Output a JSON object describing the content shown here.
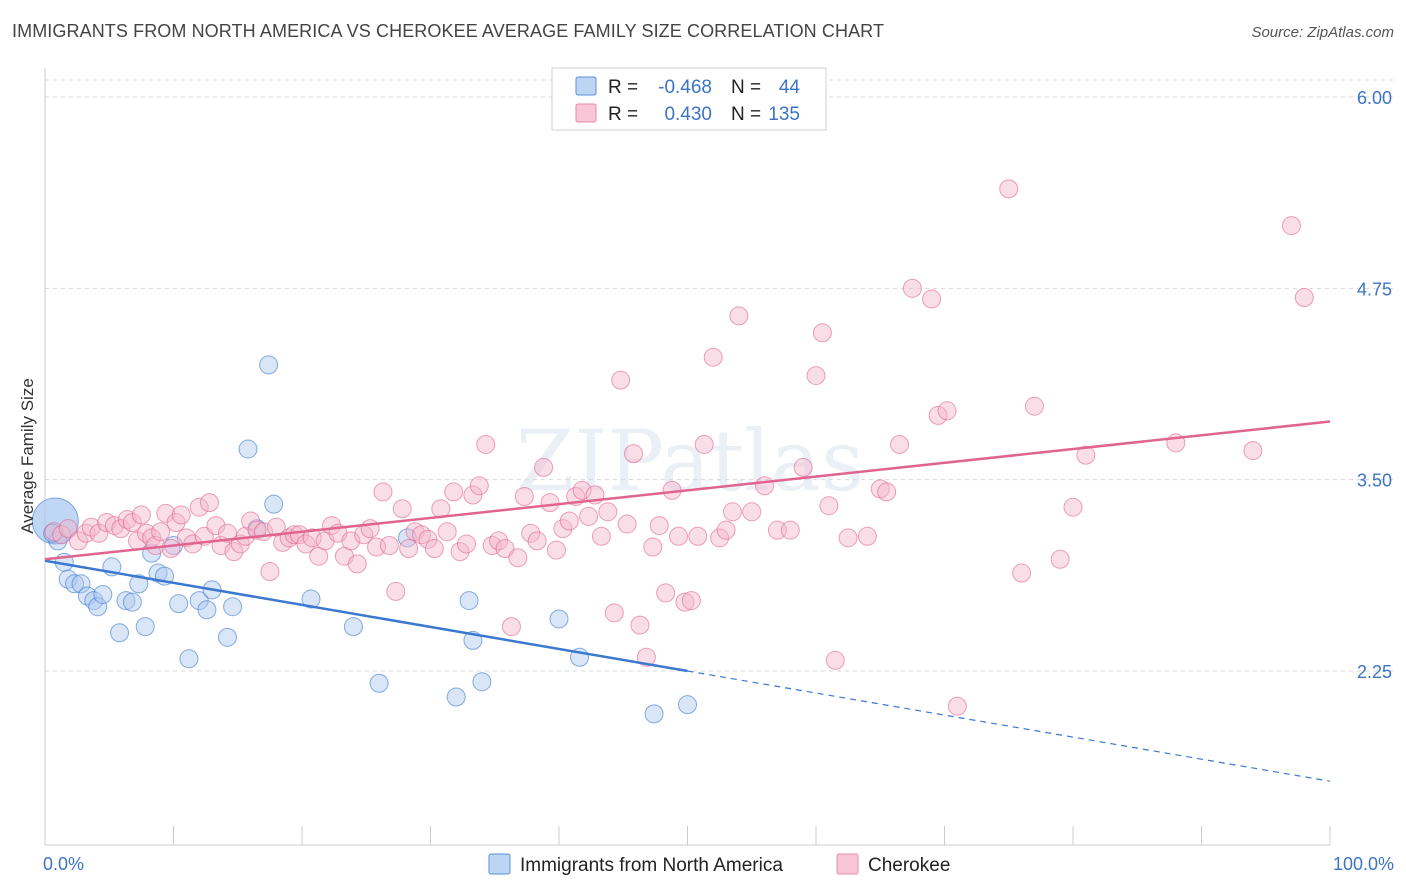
{
  "title": "IMMIGRANTS FROM NORTH AMERICA VS CHEROKEE AVERAGE FAMILY SIZE CORRELATION CHART",
  "source": "Source: ZipAtlas.com",
  "watermark": "ZIPatlas",
  "colors": {
    "blue": "#3b78d0",
    "blue_fill": "#aac8f0",
    "pink": "#e0648f",
    "pink_fill": "#f5b5ca",
    "axis_text": "#3b74c6",
    "grid": "#d8d8d8"
  },
  "legend": {
    "rows": [
      {
        "r_label": "R =",
        "r_value": "-0.468",
        "n_label": "N =",
        "n_value": "44"
      },
      {
        "r_label": "R =",
        "r_value": "0.430",
        "n_label": "N =",
        "n_value": "135"
      }
    ]
  },
  "chart_data": {
    "type": "scatter",
    "ylabel": "Average Family Size",
    "xlabel": "",
    "xlim": [
      0,
      100
    ],
    "ylim": [
      1.25,
      6.1
    ],
    "yticks": [
      2.25,
      3.5,
      4.75,
      6.0
    ],
    "ytick_labels": [
      "2.25",
      "3.50",
      "4.75",
      "6.00"
    ],
    "xtick_labels": [
      "0.0%",
      "100.0%"
    ],
    "grid": "horizontal dashed",
    "legend_position": "top-center",
    "series": [
      {
        "name": "Immigrants from North America",
        "color": "#3b78d0",
        "trend": {
          "x0": 0,
          "y0": 2.97,
          "x1": 50,
          "y1": 2.25,
          "dashed_to_x": 100,
          "dashed_to_y": 1.53
        },
        "points": [
          [
            0.8,
            3.23
          ],
          [
            1.0,
            3.1
          ],
          [
            1.5,
            2.96
          ],
          [
            1.8,
            2.85
          ],
          [
            2.3,
            2.82
          ],
          [
            2.8,
            2.82
          ],
          [
            3.3,
            2.74
          ],
          [
            3.8,
            2.71
          ],
          [
            4.1,
            2.67
          ],
          [
            4.5,
            2.75
          ],
          [
            5.2,
            2.93
          ],
          [
            5.8,
            2.5
          ],
          [
            6.3,
            2.71
          ],
          [
            6.8,
            2.7
          ],
          [
            7.3,
            2.82
          ],
          [
            7.8,
            2.54
          ],
          [
            8.3,
            3.02
          ],
          [
            8.8,
            2.89
          ],
          [
            9.3,
            2.87
          ],
          [
            10.0,
            3.07
          ],
          [
            10.4,
            2.69
          ],
          [
            11.2,
            2.33
          ],
          [
            12.0,
            2.71
          ],
          [
            12.6,
            2.65
          ],
          [
            13.0,
            2.78
          ],
          [
            14.2,
            2.47
          ],
          [
            14.6,
            2.67
          ],
          [
            15.8,
            3.7
          ],
          [
            16.5,
            3.18
          ],
          [
            17.4,
            4.25
          ],
          [
            17.8,
            3.34
          ],
          [
            20.7,
            2.72
          ],
          [
            24.0,
            2.54
          ],
          [
            26.0,
            2.17
          ],
          [
            28.2,
            3.12
          ],
          [
            32.0,
            2.08
          ],
          [
            33.0,
            2.71
          ],
          [
            33.3,
            2.45
          ],
          [
            34.0,
            2.18
          ],
          [
            40.0,
            2.59
          ],
          [
            41.6,
            2.34
          ],
          [
            47.4,
            1.97
          ],
          [
            50.0,
            2.03
          ],
          [
            0.6,
            3.15
          ]
        ]
      },
      {
        "name": "Cherokee",
        "color": "#e0648f",
        "trend": {
          "x0": 0,
          "y0": 2.98,
          "x1": 100,
          "y1": 3.88
        },
        "points": [
          [
            0.7,
            3.16
          ],
          [
            1.3,
            3.14
          ],
          [
            1.8,
            3.18
          ],
          [
            2.6,
            3.1
          ],
          [
            3.2,
            3.15
          ],
          [
            3.6,
            3.19
          ],
          [
            4.2,
            3.15
          ],
          [
            4.8,
            3.22
          ],
          [
            5.4,
            3.2
          ],
          [
            5.9,
            3.18
          ],
          [
            6.4,
            3.24
          ],
          [
            6.8,
            3.22
          ],
          [
            7.2,
            3.1
          ],
          [
            7.5,
            3.27
          ],
          [
            7.9,
            3.15
          ],
          [
            8.3,
            3.12
          ],
          [
            8.6,
            3.07
          ],
          [
            9.0,
            3.16
          ],
          [
            9.4,
            3.28
          ],
          [
            9.8,
            3.05
          ],
          [
            10.2,
            3.22
          ],
          [
            10.6,
            3.27
          ],
          [
            11.0,
            3.12
          ],
          [
            11.5,
            3.08
          ],
          [
            12.0,
            3.32
          ],
          [
            12.4,
            3.13
          ],
          [
            12.8,
            3.35
          ],
          [
            13.3,
            3.2
          ],
          [
            13.7,
            3.07
          ],
          [
            14.2,
            3.15
          ],
          [
            14.7,
            3.03
          ],
          [
            15.2,
            3.08
          ],
          [
            15.6,
            3.13
          ],
          [
            16.0,
            3.23
          ],
          [
            16.5,
            3.17
          ],
          [
            17.0,
            3.16
          ],
          [
            17.5,
            2.9
          ],
          [
            18.0,
            3.19
          ],
          [
            18.5,
            3.09
          ],
          [
            19.0,
            3.12
          ],
          [
            19.4,
            3.14
          ],
          [
            19.8,
            3.14
          ],
          [
            20.3,
            3.08
          ],
          [
            20.8,
            3.12
          ],
          [
            21.3,
            3.0
          ],
          [
            21.8,
            3.1
          ],
          [
            22.3,
            3.2
          ],
          [
            22.8,
            3.15
          ],
          [
            23.3,
            3.0
          ],
          [
            23.8,
            3.1
          ],
          [
            24.3,
            2.95
          ],
          [
            24.8,
            3.14
          ],
          [
            25.3,
            3.18
          ],
          [
            25.8,
            3.06
          ],
          [
            26.3,
            3.42
          ],
          [
            26.8,
            3.07
          ],
          [
            27.3,
            2.77
          ],
          [
            27.8,
            3.31
          ],
          [
            28.3,
            3.05
          ],
          [
            28.8,
            3.16
          ],
          [
            29.3,
            3.14
          ],
          [
            29.8,
            3.11
          ],
          [
            30.3,
            3.05
          ],
          [
            30.8,
            3.31
          ],
          [
            31.3,
            3.16
          ],
          [
            31.8,
            3.42
          ],
          [
            32.3,
            3.03
          ],
          [
            32.8,
            3.08
          ],
          [
            33.3,
            3.4
          ],
          [
            33.8,
            3.46
          ],
          [
            34.3,
            3.73
          ],
          [
            34.8,
            3.07
          ],
          [
            35.3,
            3.1
          ],
          [
            35.8,
            3.05
          ],
          [
            36.3,
            2.54
          ],
          [
            36.8,
            2.99
          ],
          [
            37.3,
            3.39
          ],
          [
            37.8,
            3.15
          ],
          [
            38.3,
            3.1
          ],
          [
            38.8,
            3.58
          ],
          [
            39.3,
            3.35
          ],
          [
            39.8,
            3.04
          ],
          [
            40.3,
            3.18
          ],
          [
            40.8,
            3.23
          ],
          [
            41.3,
            3.39
          ],
          [
            41.8,
            3.43
          ],
          [
            42.3,
            3.26
          ],
          [
            42.8,
            3.4
          ],
          [
            43.3,
            3.13
          ],
          [
            43.8,
            3.29
          ],
          [
            44.3,
            2.63
          ],
          [
            44.8,
            4.15
          ],
          [
            45.3,
            3.21
          ],
          [
            45.8,
            3.67
          ],
          [
            46.3,
            2.55
          ],
          [
            46.8,
            2.34
          ],
          [
            47.3,
            3.06
          ],
          [
            47.8,
            3.2
          ],
          [
            48.3,
            2.76
          ],
          [
            48.8,
            3.43
          ],
          [
            49.3,
            3.13
          ],
          [
            49.8,
            2.7
          ],
          [
            50.3,
            2.71
          ],
          [
            50.8,
            3.13
          ],
          [
            51.3,
            3.73
          ],
          [
            52.0,
            4.3
          ],
          [
            52.5,
            3.12
          ],
          [
            53.0,
            3.17
          ],
          [
            53.5,
            3.29
          ],
          [
            54.0,
            4.57
          ],
          [
            55.0,
            3.29
          ],
          [
            56.0,
            3.46
          ],
          [
            57.0,
            3.17
          ],
          [
            58.0,
            3.17
          ],
          [
            59.0,
            3.58
          ],
          [
            60.0,
            4.18
          ],
          [
            60.5,
            4.46
          ],
          [
            61.0,
            3.33
          ],
          [
            61.5,
            2.32
          ],
          [
            62.5,
            3.12
          ],
          [
            64.0,
            3.13
          ],
          [
            65.0,
            3.44
          ],
          [
            65.5,
            3.42
          ],
          [
            66.5,
            3.73
          ],
          [
            67.5,
            4.75
          ],
          [
            69.0,
            4.68
          ],
          [
            69.5,
            3.92
          ],
          [
            70.2,
            3.95
          ],
          [
            71.0,
            2.02
          ],
          [
            75.0,
            5.4
          ],
          [
            76.0,
            2.89
          ],
          [
            77.0,
            3.98
          ],
          [
            79.0,
            2.98
          ],
          [
            80.0,
            3.32
          ],
          [
            81.0,
            3.66
          ],
          [
            88.0,
            3.74
          ],
          [
            94.0,
            3.69
          ],
          [
            97.0,
            5.16
          ],
          [
            98.0,
            4.69
          ]
        ]
      }
    ]
  },
  "bottom_legend": [
    {
      "label": "Immigrants from North America"
    },
    {
      "label": "Cherokee"
    }
  ]
}
